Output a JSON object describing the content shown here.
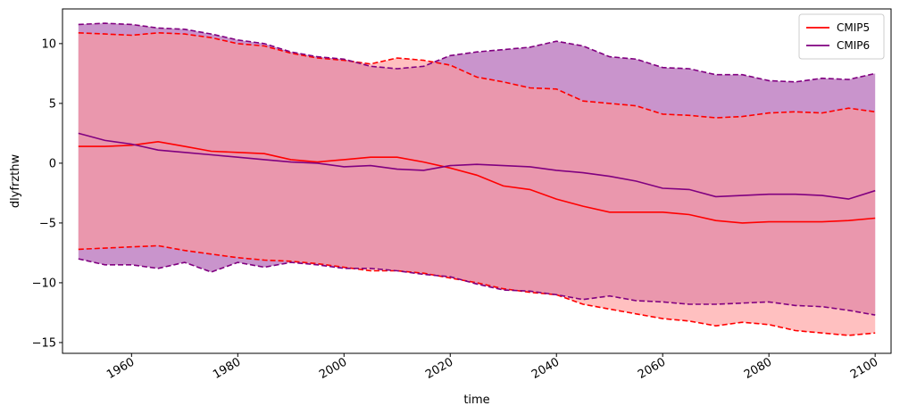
{
  "chart_data": {
    "type": "line",
    "title": "",
    "xlabel": "time",
    "ylabel": "dlyfrzthw",
    "xlim": [
      1947,
      2103
    ],
    "ylim": [
      -15.9,
      12.9
    ],
    "x_ticks": [
      1960,
      1980,
      2000,
      2020,
      2040,
      2060,
      2080,
      2100
    ],
    "y_ticks": [
      -15,
      -10,
      -5,
      0,
      5,
      10
    ],
    "grid": false,
    "legend_position": "top-right",
    "series": [
      {
        "name": "CMIP5",
        "color": "#ff0000",
        "band_color": "#ff9a9a",
        "x": [
          1950,
          1955,
          1960,
          1965,
          1970,
          1975,
          1980,
          1985,
          1990,
          1995,
          2000,
          2005,
          2010,
          2015,
          2020,
          2025,
          2030,
          2035,
          2040,
          2045,
          2050,
          2055,
          2060,
          2065,
          2070,
          2075,
          2080,
          2085,
          2090,
          2095,
          2100
        ],
        "mean": [
          1.4,
          1.4,
          1.5,
          1.8,
          1.4,
          1.0,
          0.9,
          0.8,
          0.3,
          0.1,
          0.3,
          0.5,
          0.5,
          0.1,
          -0.4,
          -1.0,
          -1.9,
          -2.2,
          -3.0,
          -3.6,
          -4.1,
          -4.1,
          -4.1,
          -4.3,
          -4.8,
          -5.0,
          -4.9,
          -4.9,
          -4.9,
          -4.8,
          -4.6
        ],
        "upper": [
          10.9,
          10.8,
          10.7,
          10.9,
          10.8,
          10.5,
          10.0,
          9.8,
          9.2,
          8.8,
          8.6,
          8.3,
          8.8,
          8.6,
          8.2,
          7.2,
          6.8,
          6.3,
          6.2,
          5.2,
          5.0,
          4.8,
          4.1,
          4.0,
          3.8,
          3.9,
          4.2,
          4.3,
          4.2,
          4.6,
          4.3
        ],
        "lower": [
          -7.2,
          -7.1,
          -7.0,
          -6.9,
          -7.3,
          -7.6,
          -7.9,
          -8.1,
          -8.2,
          -8.4,
          -8.7,
          -9.0,
          -9.0,
          -9.2,
          -9.6,
          -10.0,
          -10.5,
          -10.8,
          -11.0,
          -11.8,
          -12.2,
          -12.6,
          -13.0,
          -13.2,
          -13.6,
          -13.3,
          -13.5,
          -14.0,
          -14.2,
          -14.4,
          -14.2
        ]
      },
      {
        "name": "CMIP6",
        "color": "#800080",
        "band_color": "#c994cc",
        "x": [
          1950,
          1955,
          1960,
          1965,
          1970,
          1975,
          1980,
          1985,
          1990,
          1995,
          2000,
          2005,
          2010,
          2015,
          2020,
          2025,
          2030,
          2035,
          2040,
          2045,
          2050,
          2055,
          2060,
          2065,
          2070,
          2075,
          2080,
          2085,
          2090,
          2095,
          2100
        ],
        "mean": [
          2.5,
          1.9,
          1.6,
          1.1,
          0.9,
          0.7,
          0.5,
          0.3,
          0.1,
          0.0,
          -0.3,
          -0.2,
          -0.5,
          -0.6,
          -0.2,
          -0.1,
          -0.2,
          -0.3,
          -0.6,
          -0.8,
          -1.1,
          -1.5,
          -2.1,
          -2.2,
          -2.8,
          -2.7,
          -2.6,
          -2.6,
          -2.7,
          -3.0,
          -2.3
        ],
        "upper": [
          11.6,
          11.7,
          11.6,
          11.3,
          11.2,
          10.8,
          10.3,
          10.0,
          9.3,
          8.9,
          8.7,
          8.1,
          7.9,
          8.1,
          9.0,
          9.3,
          9.5,
          9.7,
          10.2,
          9.8,
          8.9,
          8.7,
          8.0,
          7.9,
          7.4,
          7.4,
          6.9,
          6.8,
          7.1,
          7.0,
          7.5
        ],
        "lower": [
          -8.0,
          -8.5,
          -8.5,
          -8.8,
          -8.3,
          -9.1,
          -8.3,
          -8.7,
          -8.3,
          -8.5,
          -8.8,
          -8.8,
          -9.0,
          -9.3,
          -9.5,
          -10.1,
          -10.6,
          -10.7,
          -11.0,
          -11.4,
          -11.1,
          -11.5,
          -11.6,
          -11.8,
          -11.8,
          -11.7,
          -11.6,
          -11.9,
          -12.0,
          -12.3,
          -12.7
        ]
      }
    ]
  }
}
